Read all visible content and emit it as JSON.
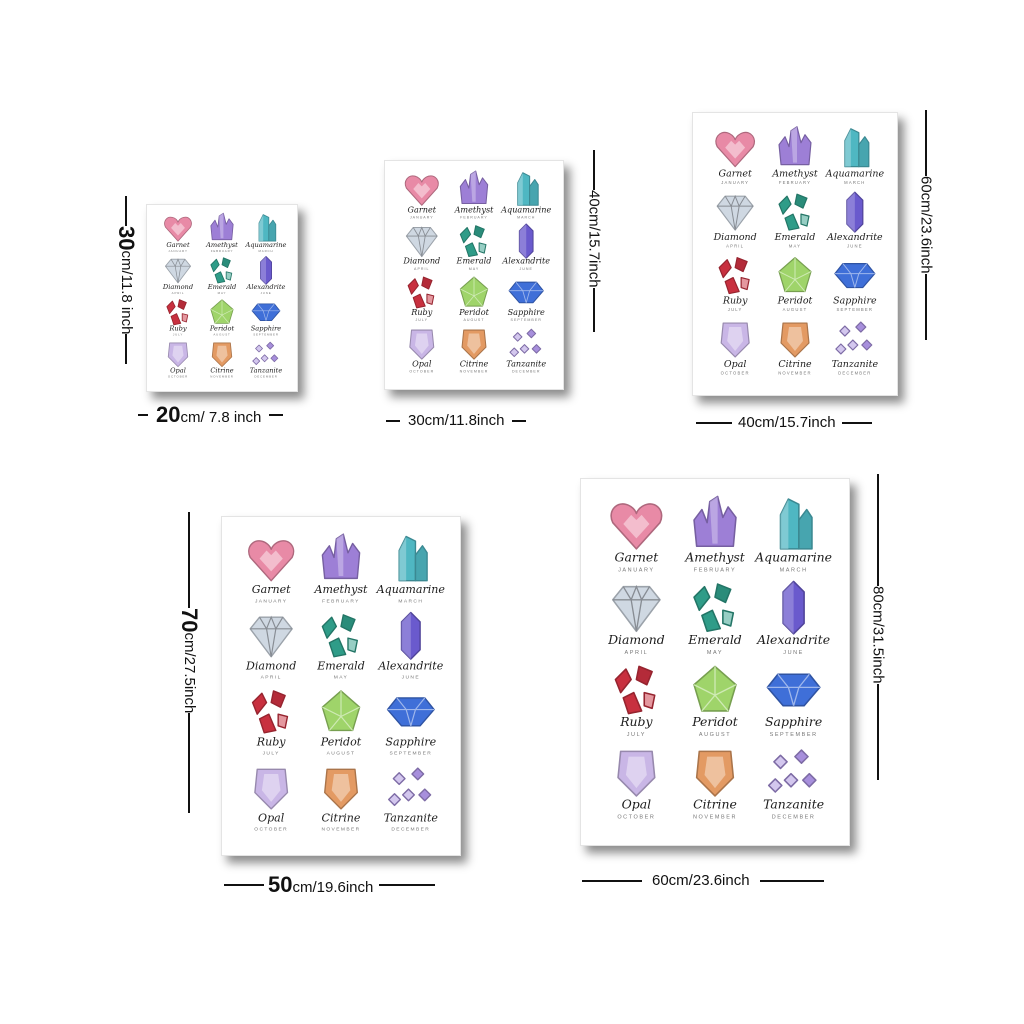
{
  "gems": [
    {
      "name": "Garnet",
      "month": "JANUARY",
      "icon": "heart-gem-icon",
      "color": "#e88aa6"
    },
    {
      "name": "Amethyst",
      "month": "FEBRUARY",
      "icon": "crystal-cluster-icon",
      "color": "#9d7fd6"
    },
    {
      "name": "Aquamarine",
      "month": "MARCH",
      "icon": "prism-crystal-icon",
      "color": "#4fb7c2"
    },
    {
      "name": "Diamond",
      "month": "APRIL",
      "icon": "diamond-icon",
      "color": "#cfd8e2"
    },
    {
      "name": "Emerald",
      "month": "MAY",
      "icon": "shards-icon",
      "color": "#2f9c88"
    },
    {
      "name": "Alexandrite",
      "month": "JUNE",
      "icon": "hex-crystal-icon",
      "color": "#6a5acd"
    },
    {
      "name": "Ruby",
      "month": "JULY",
      "icon": "shards-icon",
      "color": "#c8303f"
    },
    {
      "name": "Peridot",
      "month": "AUGUST",
      "icon": "pentagon-gem-icon",
      "color": "#9fd46a"
    },
    {
      "name": "Sapphire",
      "month": "SEPTEMBER",
      "icon": "cut-gem-icon",
      "color": "#3f6fd8"
    },
    {
      "name": "Opal",
      "month": "OCTOBER",
      "icon": "shield-gem-icon",
      "color": "#c9b6e6"
    },
    {
      "name": "Citrine",
      "month": "NOVEMBER",
      "icon": "shield-gem-icon",
      "color": "#e39a63"
    },
    {
      "name": "Tanzanite",
      "month": "DECEMBER",
      "icon": "small-cubes-icon",
      "color": "#a78fdc"
    }
  ],
  "sizes": [
    {
      "width_big": "20",
      "width_small": "cm/ 7.8 inch",
      "height_big": "30",
      "height_small": "cm/11.8 inch"
    },
    {
      "width_big": "",
      "width_small": "30cm/11.8inch",
      "height_big": "",
      "height_small": "40cm/15.7inch"
    },
    {
      "width_big": "",
      "width_small": "40cm/15.7inch",
      "height_big": "",
      "height_small": "60cm/23.6inch"
    },
    {
      "width_big": "50",
      "width_small": "cm/19.6inch",
      "height_big": "70",
      "height_small": "cm/27.5inch"
    },
    {
      "width_big": "",
      "width_small": "60cm/23.6inch",
      "height_big": "",
      "height_small": "80cm/31.5inch"
    }
  ]
}
